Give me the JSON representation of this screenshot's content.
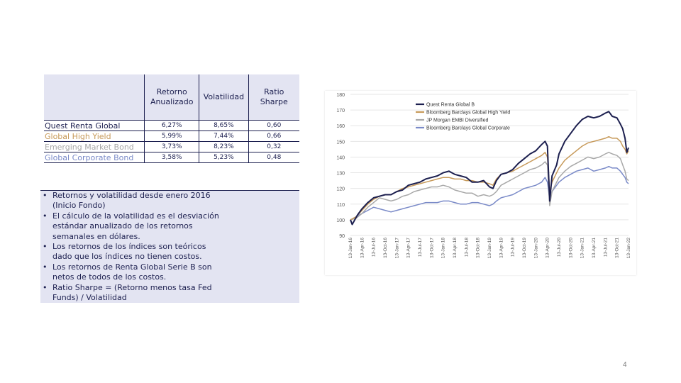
{
  "table": {
    "headers": [
      "",
      "Retorno Anualizado",
      "Volatilidad",
      "Ratio Sharpe"
    ],
    "rows": [
      {
        "name": "Quest Renta Global",
        "color": "#1c1f4f",
        "values": [
          "6,27%",
          "8,65%",
          "0,60"
        ]
      },
      {
        "name": "Global High Yield",
        "color": "#c79a5a",
        "values": [
          "5,99%",
          "7,44%",
          "0,66"
        ]
      },
      {
        "name": "Emerging Market Bond",
        "color": "#a8a8a8",
        "values": [
          "3,73%",
          "8,23%",
          "0,32"
        ]
      },
      {
        "name": "Global Corporate Bond",
        "color": "#7a8ac8",
        "values": [
          "3,58%",
          "5,23%",
          "0,48"
        ]
      }
    ]
  },
  "notes": [
    "Retornos y volatilidad desde enero 2016 (Inicio Fondo)",
    "El cálculo de la volatilidad es el desviación estándar anualizado de los retornos semanales en dólares.",
    "Los retornos de los índices son teóricos dado que los índices no tienen costos.",
    "Los retornos de Renta Global Serie B son netos de todos de los costos.",
    "Ratio Sharpe = (Retorno menos tasa Fed Funds) / Volatilidad"
  ],
  "page_number": "4",
  "chart_data": {
    "type": "line",
    "y_ticks": [
      90,
      100,
      110,
      120,
      130,
      140,
      150,
      160,
      170,
      180
    ],
    "ylim": [
      90,
      180
    ],
    "x_labels": [
      "13-Jan-16",
      "13-Apr-16",
      "13-Jul-16",
      "13-Oct-16",
      "13-Jan-17",
      "13-Apr-17",
      "13-Jul-17",
      "13-Oct-17",
      "13-Jan-18",
      "13-Apr-18",
      "13-Jul-18",
      "13-Oct-18",
      "13-Jan-19",
      "13-Apr-19",
      "13-Jul-19",
      "13-Oct-19",
      "13-Jan-20",
      "13-Apr-20",
      "13-Jul-20",
      "13-Oct-20",
      "13-Jan-21",
      "13-Apr-21",
      "13-Jul-21",
      "13-Oct-21",
      "13-Jan-22"
    ],
    "grid": true,
    "legend_position": "top",
    "series": [
      {
        "name": "Quest Renta Global B",
        "color": "#1c1f4f",
        "width": 2.0,
        "points": [
          [
            0,
            100
          ],
          [
            0.15,
            97
          ],
          [
            0.6,
            103
          ],
          [
            1,
            107
          ],
          [
            1.5,
            111
          ],
          [
            2,
            114
          ],
          [
            2.5,
            115
          ],
          [
            3,
            116
          ],
          [
            3.5,
            116
          ],
          [
            4,
            118
          ],
          [
            4.5,
            119
          ],
          [
            5,
            122
          ],
          [
            5.5,
            123
          ],
          [
            6,
            124
          ],
          [
            6.5,
            126
          ],
          [
            7,
            127
          ],
          [
            7.5,
            128
          ],
          [
            8,
            130
          ],
          [
            8.5,
            131
          ],
          [
            9,
            129
          ],
          [
            9.5,
            128
          ],
          [
            10,
            127
          ],
          [
            10.5,
            124
          ],
          [
            11,
            124
          ],
          [
            11.5,
            125
          ],
          [
            12,
            121
          ],
          [
            12.3,
            120
          ],
          [
            12.6,
            125
          ],
          [
            13,
            129
          ],
          [
            13.5,
            130
          ],
          [
            14,
            132
          ],
          [
            14.5,
            136
          ],
          [
            15,
            139
          ],
          [
            15.5,
            142
          ],
          [
            16,
            144
          ],
          [
            16.5,
            148
          ],
          [
            16.8,
            150
          ],
          [
            17,
            147
          ],
          [
            17.2,
            112
          ],
          [
            17.4,
            128
          ],
          [
            17.8,
            135
          ],
          [
            18,
            142
          ],
          [
            18.5,
            150
          ],
          [
            19,
            155
          ],
          [
            19.5,
            160
          ],
          [
            20,
            164
          ],
          [
            20.5,
            166
          ],
          [
            21,
            165
          ],
          [
            21.5,
            166
          ],
          [
            22,
            168
          ],
          [
            22.3,
            169
          ],
          [
            22.6,
            166
          ],
          [
            23,
            165
          ],
          [
            23.3,
            161
          ],
          [
            23.5,
            158
          ],
          [
            23.7,
            152
          ],
          [
            23.85,
            143
          ],
          [
            24,
            146
          ]
        ]
      },
      {
        "name": "Bloomberg Barclays Global High Yield",
        "color": "#c79a5a",
        "width": 1.5,
        "points": [
          [
            0,
            100
          ],
          [
            0.5,
            102
          ],
          [
            1,
            106
          ],
          [
            1.5,
            110
          ],
          [
            2,
            113
          ],
          [
            2.5,
            115
          ],
          [
            3,
            116
          ],
          [
            3.5,
            116
          ],
          [
            4,
            118
          ],
          [
            4.5,
            120
          ],
          [
            5,
            121
          ],
          [
            5.5,
            122
          ],
          [
            6,
            123
          ],
          [
            6.5,
            124
          ],
          [
            7,
            125
          ],
          [
            7.5,
            126
          ],
          [
            8,
            127
          ],
          [
            8.5,
            127
          ],
          [
            9,
            126
          ],
          [
            9.5,
            126
          ],
          [
            10,
            125
          ],
          [
            10.5,
            125
          ],
          [
            11,
            124
          ],
          [
            11.5,
            124
          ],
          [
            12,
            123
          ],
          [
            12.3,
            122
          ],
          [
            12.6,
            126
          ],
          [
            13,
            129
          ],
          [
            13.5,
            130
          ],
          [
            14,
            131
          ],
          [
            14.5,
            133
          ],
          [
            15,
            135
          ],
          [
            15.5,
            137
          ],
          [
            16,
            139
          ],
          [
            16.5,
            141
          ],
          [
            16.8,
            143
          ],
          [
            17,
            140
          ],
          [
            17.2,
            118
          ],
          [
            17.4,
            124
          ],
          [
            17.8,
            130
          ],
          [
            18,
            133
          ],
          [
            18.5,
            138
          ],
          [
            19,
            141
          ],
          [
            19.5,
            144
          ],
          [
            20,
            147
          ],
          [
            20.5,
            149
          ],
          [
            21,
            150
          ],
          [
            21.5,
            151
          ],
          [
            22,
            152
          ],
          [
            22.3,
            153
          ],
          [
            22.6,
            152
          ],
          [
            23,
            152
          ],
          [
            23.3,
            150
          ],
          [
            23.5,
            147
          ],
          [
            23.7,
            145
          ],
          [
            23.85,
            142
          ],
          [
            24,
            144
          ]
        ]
      },
      {
        "name": "JP Morgan EMBI Diversified",
        "color": "#a8a8a8",
        "width": 1.5,
        "points": [
          [
            0,
            100
          ],
          [
            0.5,
            101
          ],
          [
            1,
            104
          ],
          [
            1.5,
            108
          ],
          [
            2,
            111
          ],
          [
            2.5,
            114
          ],
          [
            3,
            113
          ],
          [
            3.5,
            112
          ],
          [
            4,
            113
          ],
          [
            4.5,
            115
          ],
          [
            5,
            116
          ],
          [
            5.5,
            118
          ],
          [
            6,
            119
          ],
          [
            6.5,
            120
          ],
          [
            7,
            121
          ],
          [
            7.5,
            121
          ],
          [
            8,
            122
          ],
          [
            8.5,
            121
          ],
          [
            9,
            119
          ],
          [
            9.5,
            118
          ],
          [
            10,
            117
          ],
          [
            10.5,
            117
          ],
          [
            11,
            115
          ],
          [
            11.5,
            116
          ],
          [
            12,
            115
          ],
          [
            12.3,
            116
          ],
          [
            12.6,
            118
          ],
          [
            13,
            122
          ],
          [
            13.5,
            124
          ],
          [
            14,
            126
          ],
          [
            14.5,
            128
          ],
          [
            15,
            130
          ],
          [
            15.5,
            132
          ],
          [
            16,
            133
          ],
          [
            16.5,
            135
          ],
          [
            16.8,
            137
          ],
          [
            17,
            135
          ],
          [
            17.2,
            109
          ],
          [
            17.4,
            118
          ],
          [
            17.8,
            124
          ],
          [
            18,
            127
          ],
          [
            18.5,
            131
          ],
          [
            19,
            134
          ],
          [
            19.5,
            136
          ],
          [
            20,
            138
          ],
          [
            20.5,
            140
          ],
          [
            21,
            139
          ],
          [
            21.5,
            140
          ],
          [
            22,
            142
          ],
          [
            22.3,
            143
          ],
          [
            22.6,
            142
          ],
          [
            23,
            141
          ],
          [
            23.3,
            139
          ],
          [
            23.5,
            135
          ],
          [
            23.7,
            131
          ],
          [
            23.85,
            126
          ],
          [
            24,
            125
          ]
        ]
      },
      {
        "name": "Bloomberg Barclays Global Corporate",
        "color": "#7a8ac8",
        "width": 1.5,
        "points": [
          [
            0,
            100
          ],
          [
            0.5,
            102
          ],
          [
            1,
            104
          ],
          [
            1.5,
            106
          ],
          [
            2,
            108
          ],
          [
            2.5,
            107
          ],
          [
            3,
            106
          ],
          [
            3.5,
            105
          ],
          [
            4,
            106
          ],
          [
            4.5,
            107
          ],
          [
            5,
            108
          ],
          [
            5.5,
            109
          ],
          [
            6,
            110
          ],
          [
            6.5,
            111
          ],
          [
            7,
            111
          ],
          [
            7.5,
            111
          ],
          [
            8,
            112
          ],
          [
            8.5,
            112
          ],
          [
            9,
            111
          ],
          [
            9.5,
            110
          ],
          [
            10,
            110
          ],
          [
            10.5,
            111
          ],
          [
            11,
            111
          ],
          [
            11.5,
            110
          ],
          [
            12,
            109
          ],
          [
            12.3,
            110
          ],
          [
            12.6,
            112
          ],
          [
            13,
            114
          ],
          [
            13.5,
            115
          ],
          [
            14,
            116
          ],
          [
            14.5,
            118
          ],
          [
            15,
            120
          ],
          [
            15.5,
            121
          ],
          [
            16,
            122
          ],
          [
            16.5,
            124
          ],
          [
            16.8,
            127
          ],
          [
            17,
            124
          ],
          [
            17.2,
            113
          ],
          [
            17.4,
            118
          ],
          [
            17.8,
            122
          ],
          [
            18,
            124
          ],
          [
            18.5,
            127
          ],
          [
            19,
            129
          ],
          [
            19.5,
            131
          ],
          [
            20,
            132
          ],
          [
            20.5,
            133
          ],
          [
            21,
            131
          ],
          [
            21.5,
            132
          ],
          [
            22,
            133
          ],
          [
            22.3,
            134
          ],
          [
            22.6,
            133
          ],
          [
            23,
            133
          ],
          [
            23.3,
            131
          ],
          [
            23.5,
            129
          ],
          [
            23.7,
            127
          ],
          [
            23.85,
            124
          ],
          [
            24,
            123
          ]
        ]
      }
    ]
  }
}
